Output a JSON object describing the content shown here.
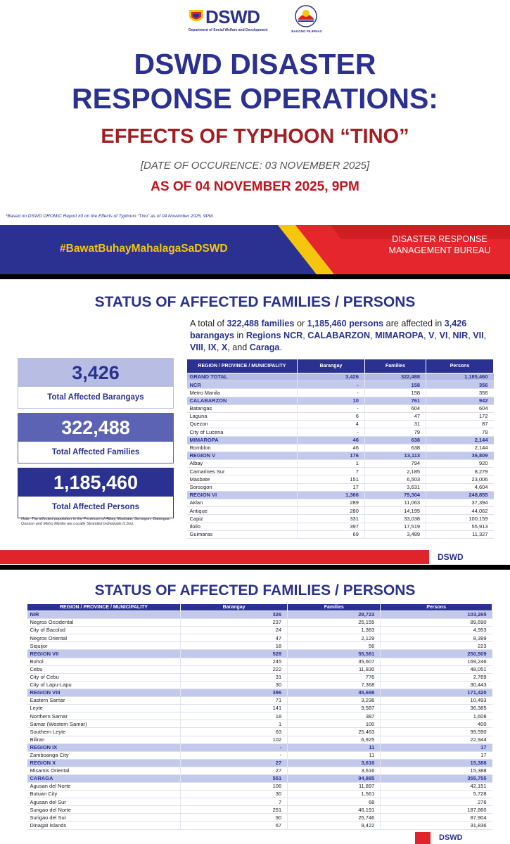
{
  "slide1": {
    "logo_text": "DSWD",
    "logo_subtext": "Department of Social Welfare and Development",
    "logo2_text": "BAGONG PILIPINAS",
    "title_lines": [
      "DSWD DISASTER",
      "RESPONSE OPERATIONS:"
    ],
    "subtitle": "EFFECTS OF TYPHOON “TINO”",
    "date": "[DATE OF OCCURENCE: 03 NOVEMBER 2025]",
    "as_of": "AS OF 04 NOVEMBER 2025, 9PM",
    "footnote": "*Based on DSWD DROMIC Report #3 on the Effects of Typhoon “Tino” as of 04 November 2025, 9PM.",
    "hashtag": "#BawatBuhayMahalagaSaDSWD",
    "bureau_lines": [
      "DISASTER RESPONSE",
      "MANAGEMENT BUREAU"
    ]
  },
  "slide2": {
    "heading": "STATUS OF AFFECTED FAMILIES / PERSONS",
    "summary": [
      {
        "text": "A total of ",
        "strong": false
      },
      {
        "text": "322,488 families",
        "strong": true
      },
      {
        "text": " or ",
        "strong": false
      },
      {
        "text": "1,185,460 persons",
        "strong": true
      },
      {
        "text": " are affected in ",
        "strong": false
      },
      {
        "text": "3,426 barangays",
        "strong": true
      },
      {
        "text": " in ",
        "strong": false
      },
      {
        "text": "Regions NCR",
        "strong": true
      },
      {
        "text": ", ",
        "strong": false
      },
      {
        "text": "CALABARZON",
        "strong": true
      },
      {
        "text": ", ",
        "strong": false
      },
      {
        "text": "MIMAROPA",
        "strong": true
      },
      {
        "text": ", ",
        "strong": false
      },
      {
        "text": "V",
        "strong": true
      },
      {
        "text": ", ",
        "strong": false
      },
      {
        "text": "VI",
        "strong": true
      },
      {
        "text": ", ",
        "strong": false
      },
      {
        "text": "NIR",
        "strong": true
      },
      {
        "text": ", ",
        "strong": false
      },
      {
        "text": "VII",
        "strong": true
      },
      {
        "text": ", ",
        "strong": false
      },
      {
        "text": "VIII",
        "strong": true
      },
      {
        "text": ", ",
        "strong": false
      },
      {
        "text": "IX",
        "strong": true
      },
      {
        "text": ", ",
        "strong": false
      },
      {
        "text": "X",
        "strong": true
      },
      {
        "text": ", and ",
        "strong": false
      },
      {
        "text": "Caraga",
        "strong": true
      },
      {
        "text": ".",
        "strong": false
      }
    ],
    "stats": [
      {
        "value": "3,426",
        "label": "Total Affected Barangays"
      },
      {
        "value": "322,488",
        "label": "Total Affected Families"
      },
      {
        "value": "1,185,460",
        "label": "Total Affected Persons"
      }
    ],
    "note": "Note: The affected population in the Provinces of Albay, Masbate, Sorsogon, Batangas, Quezon and Metro Manila are Locally Stranded Individuals (LSIs).",
    "footer_logo": "DSWD",
    "table": {
      "header": [
        "REGION / PROVINCE / MUNICIPALITY",
        "Barangay",
        "Families",
        "Persons"
      ],
      "rows": [
        {
          "level": "grand",
          "cells": [
            "GRAND TOTAL",
            "3,426",
            "322,488",
            "1,185,460"
          ]
        },
        {
          "level": "region",
          "cells": [
            "NCR",
            "-",
            "158",
            "356"
          ]
        },
        {
          "level": "local",
          "cells": [
            "Metro Manila",
            "-",
            "158",
            "356"
          ]
        },
        {
          "level": "region",
          "cells": [
            "CALABARZON",
            "10",
            "761",
            "942"
          ]
        },
        {
          "level": "local",
          "cells": [
            "Batangas",
            "-",
            "604",
            "604"
          ]
        },
        {
          "level": "local",
          "cells": [
            "Laguna",
            "6",
            "47",
            "172"
          ]
        },
        {
          "level": "local",
          "cells": [
            "Quezon",
            "4",
            "31",
            "87"
          ]
        },
        {
          "level": "local",
          "cells": [
            "City of Lucena",
            "-",
            "79",
            "79"
          ]
        },
        {
          "level": "region",
          "cells": [
            "MIMAROPA",
            "46",
            "638",
            "2,144"
          ]
        },
        {
          "level": "local",
          "cells": [
            "Romblon",
            "46",
            "638",
            "2,144"
          ]
        },
        {
          "level": "region",
          "cells": [
            "REGION V",
            "176",
            "13,113",
            "36,809"
          ]
        },
        {
          "level": "local",
          "cells": [
            "Albay",
            "1",
            "794",
            "920"
          ]
        },
        {
          "level": "local",
          "cells": [
            "Camarines Sur",
            "7",
            "2,185",
            "8,279"
          ]
        },
        {
          "level": "local",
          "cells": [
            "Masbate",
            "151",
            "6,503",
            "23,006"
          ]
        },
        {
          "level": "local",
          "cells": [
            "Sorsogon",
            "17",
            "3,631",
            "4,604"
          ]
        },
        {
          "level": "region",
          "cells": [
            "REGION VI",
            "1,366",
            "79,304",
            "248,855"
          ]
        },
        {
          "level": "local",
          "cells": [
            "Aklan",
            "289",
            "11,063",
            "37,394"
          ]
        },
        {
          "level": "local",
          "cells": [
            "Antique",
            "280",
            "14,195",
            "44,062"
          ]
        },
        {
          "level": "local",
          "cells": [
            "Capiz",
            "331",
            "33,038",
            "100,159"
          ]
        },
        {
          "level": "local",
          "cells": [
            "Iloilo",
            "397",
            "17,519",
            "55,913"
          ]
        },
        {
          "level": "local",
          "cells": [
            "Guimaras",
            "69",
            "3,489",
            "11,327"
          ]
        }
      ]
    }
  },
  "slide3": {
    "heading": "STATUS OF AFFECTED FAMILIES / PERSONS",
    "footer_logo": "DSWD",
    "table": {
      "header": [
        "REGION / PROVINCE / MUNICIPALITY",
        "Barangay",
        "Families",
        "Persons"
      ],
      "rows": [
        {
          "level": "region",
          "cells": [
            "NIR",
            "326",
            "28,723",
            "103,265"
          ]
        },
        {
          "level": "local",
          "cells": [
            "Negros Occidental",
            "237",
            "25,155",
            "89,690"
          ]
        },
        {
          "level": "local",
          "cells": [
            "City of Bacolod",
            "24",
            "1,383",
            "4,953"
          ]
        },
        {
          "level": "local",
          "cells": [
            "Negros Oriental",
            "47",
            "2,129",
            "8,399"
          ]
        },
        {
          "level": "local",
          "cells": [
            "Siquijor",
            "18",
            "56",
            "223"
          ]
        },
        {
          "level": "region",
          "cells": [
            "REGION VII",
            "528",
            "55,581",
            "250,509"
          ]
        },
        {
          "level": "local",
          "cells": [
            "Bohol",
            "245",
            "35,607",
            "169,246"
          ]
        },
        {
          "level": "local",
          "cells": [
            "Cebu",
            "222",
            "11,830",
            "48,051"
          ]
        },
        {
          "level": "local",
          "cells": [
            "City of Cebu",
            "31",
            "776",
            "2,769"
          ]
        },
        {
          "level": "local",
          "cells": [
            "City of Lapu-Lapu",
            "30",
            "7,368",
            "30,443"
          ]
        },
        {
          "level": "region",
          "cells": [
            "REGION VIII",
            "396",
            "45,698",
            "171,420"
          ]
        },
        {
          "level": "local",
          "cells": [
            "Eastern Samar",
            "71",
            "3,236",
            "10,493"
          ]
        },
        {
          "level": "local",
          "cells": [
            "Leyte",
            "141",
            "9,587",
            "36,385"
          ]
        },
        {
          "level": "local",
          "cells": [
            "Northern Samar",
            "18",
            "387",
            "1,608"
          ]
        },
        {
          "level": "local",
          "cells": [
            "Samar (Western Samar)",
            "1",
            "100",
            "400"
          ]
        },
        {
          "level": "local",
          "cells": [
            "Southern Leyte",
            "63",
            "25,463",
            "99,590"
          ]
        },
        {
          "level": "local",
          "cells": [
            "Biliran",
            "102",
            "6,925",
            "22,944"
          ]
        },
        {
          "level": "region",
          "cells": [
            "REGION IX",
            "-",
            "11",
            "17"
          ]
        },
        {
          "level": "local",
          "cells": [
            "Zamboanga City",
            "-",
            "11",
            "17"
          ]
        },
        {
          "level": "region",
          "cells": [
            "REGION X",
            "27",
            "3,616",
            "15,388"
          ]
        },
        {
          "level": "local",
          "cells": [
            "Misamis Oriental",
            "27",
            "3,616",
            "15,388"
          ]
        },
        {
          "level": "region",
          "cells": [
            "CARAGA",
            "551",
            "94,885",
            "355,755"
          ]
        },
        {
          "level": "local",
          "cells": [
            "Agusan del Norte",
            "106",
            "11,897",
            "42,151"
          ]
        },
        {
          "level": "local",
          "cells": [
            "Butuan City",
            "30",
            "1,561",
            "5,728"
          ]
        },
        {
          "level": "local",
          "cells": [
            "Agusan del Sur",
            "7",
            "68",
            "276"
          ]
        },
        {
          "level": "local",
          "cells": [
            "Surigao del Norte",
            "251",
            "46,191",
            "187,860"
          ]
        },
        {
          "level": "local",
          "cells": [
            "Surigao del Sur",
            "90",
            "25,746",
            "87,904"
          ]
        },
        {
          "level": "local",
          "cells": [
            "Dinagat Islands",
            "67",
            "9,422",
            "31,836"
          ]
        }
      ]
    }
  }
}
